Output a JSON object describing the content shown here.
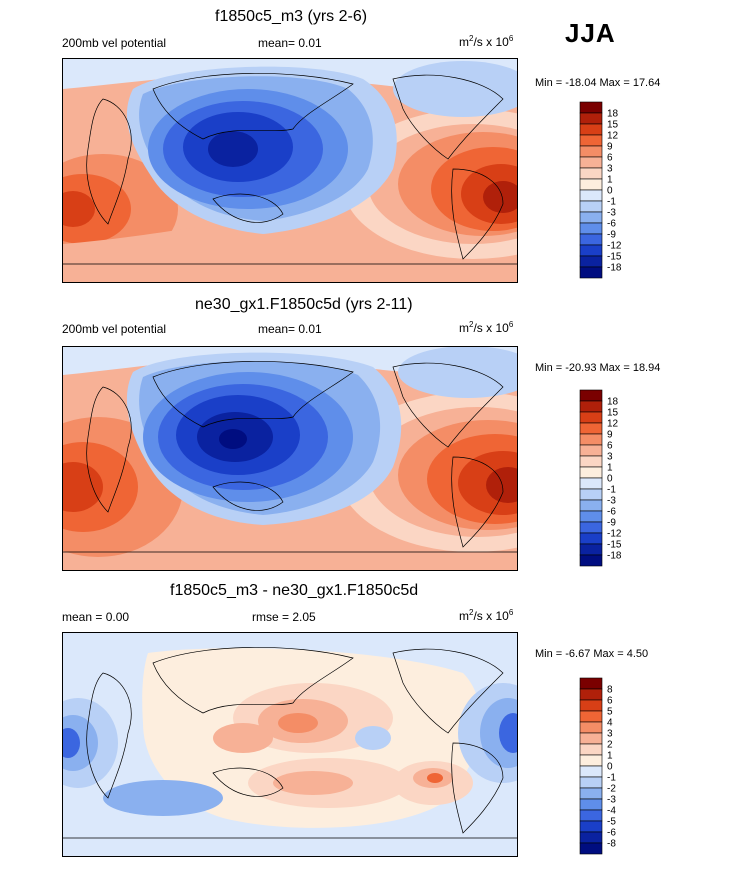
{
  "season": "JJA",
  "panels": [
    {
      "title": "f1850c5_m3 (yrs 2-6)",
      "left_label": "200mb vel potential",
      "center_label": "mean=   0.01",
      "units_base": "m",
      "units_exp": "2",
      "units_mid": "/s x 10",
      "units_exp2": "6",
      "minmax": "Min = -18.04 Max =  17.64",
      "colorbar_labels": [
        "18",
        "15",
        "12",
        "9",
        "6",
        "3",
        "1",
        "0",
        "-1",
        "-3",
        "-6",
        "-9",
        "-12",
        "-15",
        "-18"
      ]
    },
    {
      "title": "ne30_gx1.F1850c5d (yrs 2-11)",
      "left_label": "200mb vel potential",
      "center_label": "mean=   0.01",
      "units_base": "m",
      "units_exp": "2",
      "units_mid": "/s x 10",
      "units_exp2": "6",
      "minmax": "Min = -20.93 Max =  18.94",
      "colorbar_labels": [
        "18",
        "15",
        "12",
        "9",
        "6",
        "3",
        "1",
        "0",
        "-1",
        "-3",
        "-6",
        "-9",
        "-12",
        "-15",
        "-18"
      ]
    },
    {
      "title": "f1850c5_m3 - ne30_gx1.F1850c5d",
      "left_label": "mean =   0.00",
      "center_label": "rmse =   2.05",
      "units_base": "m",
      "units_exp": "2",
      "units_mid": "/s x 10",
      "units_exp2": "6",
      "minmax": "Min =  -6.67 Max =   4.50",
      "colorbar_labels": [
        "8",
        "6",
        "5",
        "4",
        "3",
        "2",
        "1",
        "0",
        "-1",
        "-2",
        "-3",
        "-4",
        "-5",
        "-6",
        "-8"
      ]
    }
  ],
  "colors": {
    "main": [
      "#7a0000",
      "#b0200a",
      "#d83f16",
      "#ef6535",
      "#f48d66",
      "#f7b196",
      "#fbd6c4",
      "#fdeede",
      "#dbe8fb",
      "#b8d0f6",
      "#8ab0ef",
      "#5f8eea",
      "#3b66e0",
      "#1a3fc8",
      "#0a22a0",
      "#000d80"
    ],
    "diff": [
      "#7a0000",
      "#b0200a",
      "#d83f16",
      "#ef6535",
      "#f48d66",
      "#f7b196",
      "#fbd6c4",
      "#fdeede",
      "#dbe8fb",
      "#b8d0f6",
      "#8ab0ef",
      "#5f8eea",
      "#3b66e0",
      "#1a3fc8",
      "#0a22a0",
      "#000d80"
    ]
  },
  "chart_data": [
    {
      "type": "heatmap",
      "title": "f1850c5_m3 (yrs 2-6)",
      "field": "200mb velocity potential",
      "season": "JJA",
      "units": "m2/s x 10^6",
      "mean": 0.01,
      "min": -18.04,
      "max": 17.64,
      "contour_levels": [
        -18,
        -15,
        -12,
        -9,
        -6,
        -3,
        -1,
        0,
        1,
        3,
        6,
        9,
        12,
        15,
        18
      ]
    },
    {
      "type": "heatmap",
      "title": "ne30_gx1.F1850c5d (yrs 2-11)",
      "field": "200mb velocity potential",
      "season": "JJA",
      "units": "m2/s x 10^6",
      "mean": 0.01,
      "min": -20.93,
      "max": 18.94,
      "contour_levels": [
        -18,
        -15,
        -12,
        -9,
        -6,
        -3,
        -1,
        0,
        1,
        3,
        6,
        9,
        12,
        15,
        18
      ]
    },
    {
      "type": "heatmap",
      "title": "f1850c5_m3 - ne30_gx1.F1850c5d",
      "field": "difference",
      "season": "JJA",
      "units": "m2/s x 10^6",
      "mean": 0.0,
      "rmse": 2.05,
      "min": -6.67,
      "max": 4.5,
      "contour_levels": [
        -8,
        -6,
        -5,
        -4,
        -3,
        -2,
        -1,
        0,
        1,
        2,
        3,
        4,
        5,
        6,
        8
      ]
    }
  ]
}
